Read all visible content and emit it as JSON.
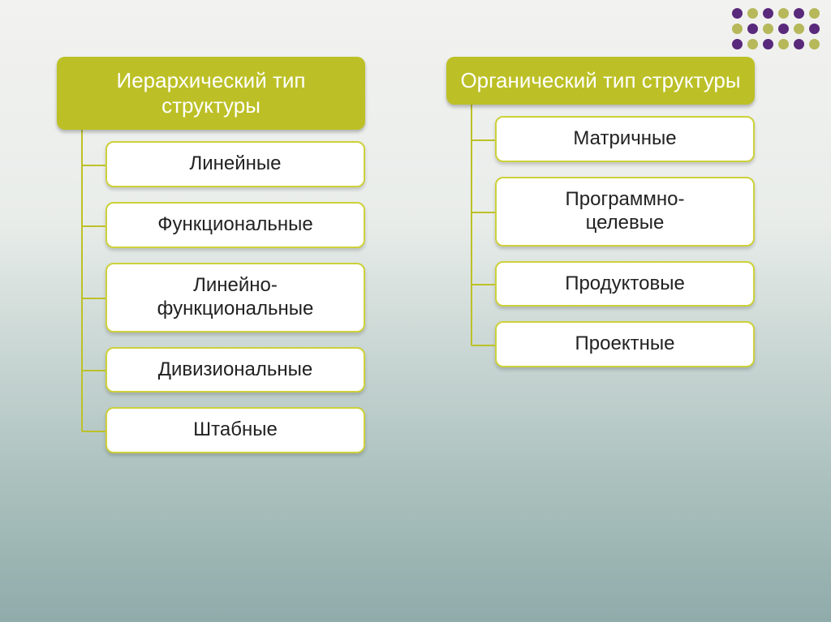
{
  "type": "hierarchical-list-diagram",
  "background_gradient": [
    "#f2f2f0",
    "#e9edea",
    "#aec3c0",
    "#8fabaa"
  ],
  "header_bg": "#bcc026",
  "header_text_color": "#ffffff",
  "item_bg": "#ffffff",
  "item_border_color": "#cdd13a",
  "item_text_color": "#222222",
  "connector_color": "#bdc127",
  "header_fontsize": 26,
  "item_fontsize": 24,
  "border_radius": 10,
  "decorative_dots": {
    "rows": 3,
    "cols": 6,
    "colors": [
      [
        "#59297b",
        "#b6b85a",
        "#59297b",
        "#b6b85a",
        "#59297b",
        "#b6b85a"
      ],
      [
        "#b6b85a",
        "#59297b",
        "#b6b85a",
        "#59297b",
        "#b6b85a",
        "#59297b"
      ],
      [
        "#59297b",
        "#b6b85a",
        "#59297b",
        "#b6b85a",
        "#59297b",
        "#b6b85a"
      ]
    ],
    "dot_size": 13
  },
  "columns": [
    {
      "header": "Иерархический тип\nструктуры",
      "items": [
        "Линейные",
        "Функциональные",
        "Линейно-\nфункциональные",
        "Дивизиональные",
        "Штабные"
      ]
    },
    {
      "header": "Органический тип\nструктуры",
      "items": [
        "Матричные",
        "Программно-\nцелевые",
        "Продуктовые",
        "Проектные"
      ]
    }
  ]
}
